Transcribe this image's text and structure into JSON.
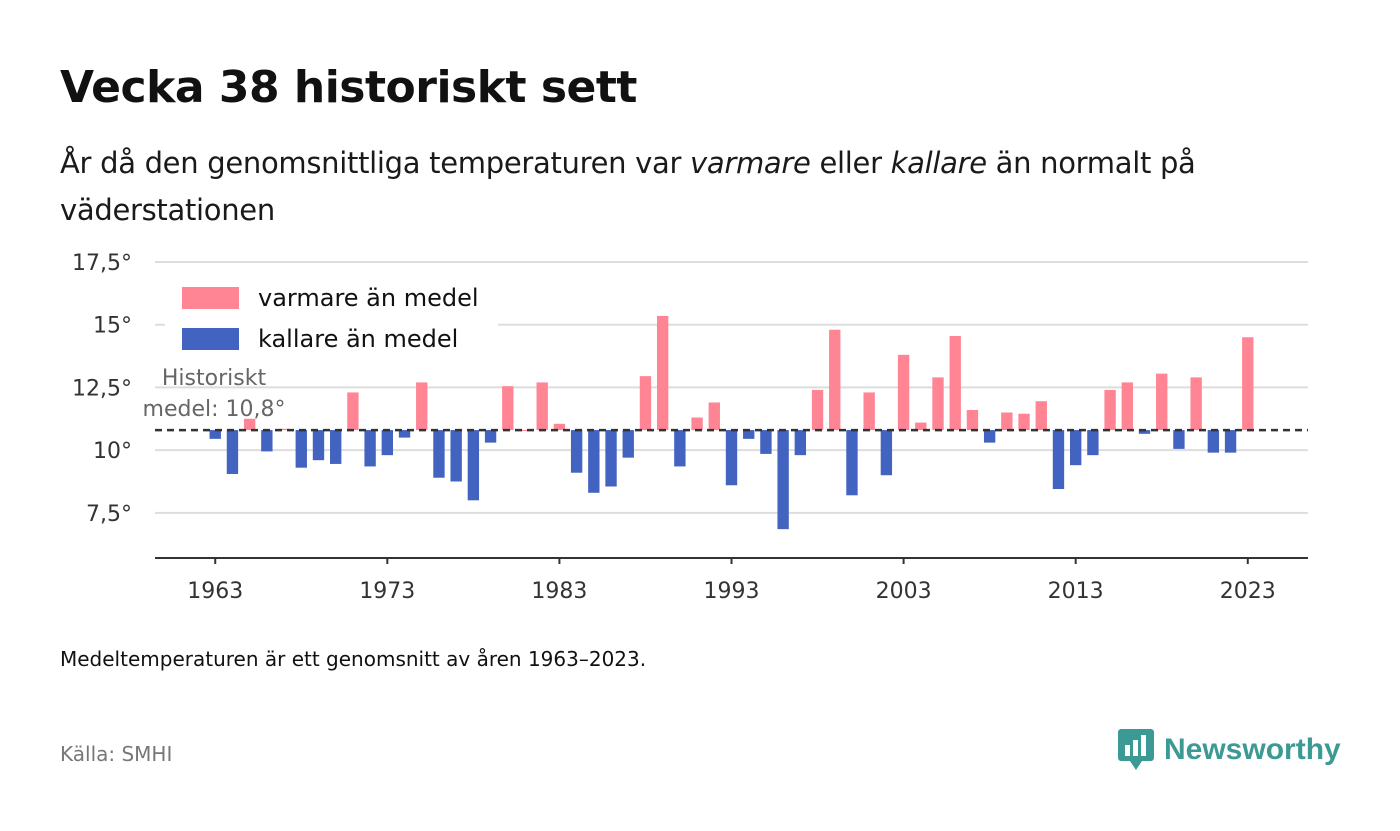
{
  "title": "Vecka 38 historiskt sett",
  "subtitle": {
    "part1": "År då den genomsnittliga temperaturen var ",
    "warm_word": "varmare",
    "part2": " eller ",
    "cold_word": "kallare",
    "part3": " än normalt på väderstationen"
  },
  "footnote": "Medeltemperaturen är ett genomsnitt av åren 1963–2023.",
  "source": "Källa: SMHI",
  "brand": {
    "name": "Newsworthy",
    "icon": "newsworthy-logo-icon",
    "color": "#3b9a94"
  },
  "chart_data": {
    "type": "bar",
    "baseline": 10.8,
    "baseline_label": [
      "Historiskt",
      "medel: 10,8°"
    ],
    "ylim": [
      5.7,
      17.5
    ],
    "yticks": [
      7.5,
      10,
      12.5,
      15,
      17.5
    ],
    "ytick_labels": [
      "7,5°",
      "10°",
      "12,5°",
      "15°",
      "17,5°"
    ],
    "xlim": [
      1959.5,
      2026.5
    ],
    "xticks": [
      1963,
      1973,
      1983,
      1993,
      2003,
      2013,
      2023
    ],
    "xtick_labels": [
      "1963",
      "1973",
      "1983",
      "1993",
      "2003",
      "2013",
      "2023"
    ],
    "grid": true,
    "legend_position": "top-left",
    "colors": {
      "warm": "#ff8594",
      "cold": "#4263c0",
      "baseline": "#333333",
      "grid": "#dddddd",
      "axis": "#333333"
    },
    "legend": [
      {
        "label": "varmare än medel",
        "key": "warm"
      },
      {
        "label": "kallare än medel",
        "key": "cold"
      }
    ],
    "x": [
      1963,
      1964,
      1965,
      1966,
      1967,
      1968,
      1969,
      1970,
      1971,
      1972,
      1973,
      1974,
      1975,
      1976,
      1977,
      1978,
      1979,
      1980,
      1981,
      1982,
      1983,
      1984,
      1985,
      1986,
      1987,
      1988,
      1989,
      1990,
      1991,
      1992,
      1993,
      1994,
      1995,
      1996,
      1997,
      1998,
      1999,
      2000,
      2001,
      2002,
      2003,
      2004,
      2005,
      2006,
      2007,
      2008,
      2009,
      2010,
      2011,
      2012,
      2013,
      2014,
      2015,
      2016,
      2017,
      2018,
      2019,
      2020,
      2021,
      2022,
      2023
    ],
    "values": [
      10.45,
      9.05,
      11.25,
      9.95,
      10.85,
      9.3,
      9.6,
      9.45,
      12.3,
      9.35,
      9.8,
      10.5,
      12.7,
      8.9,
      8.75,
      8.0,
      10.3,
      12.55,
      10.8,
      12.7,
      11.05,
      9.1,
      8.3,
      8.55,
      9.7,
      12.95,
      15.35,
      9.35,
      11.3,
      11.9,
      8.6,
      10.45,
      9.85,
      6.85,
      9.8,
      12.4,
      14.8,
      8.2,
      12.3,
      9.0,
      13.8,
      11.1,
      12.9,
      14.55,
      11.6,
      10.3,
      11.5,
      11.45,
      11.95,
      8.45,
      9.4,
      9.8,
      12.4,
      12.7,
      10.65,
      13.05,
      10.05,
      12.9,
      9.9,
      9.9,
      14.5
    ]
  }
}
